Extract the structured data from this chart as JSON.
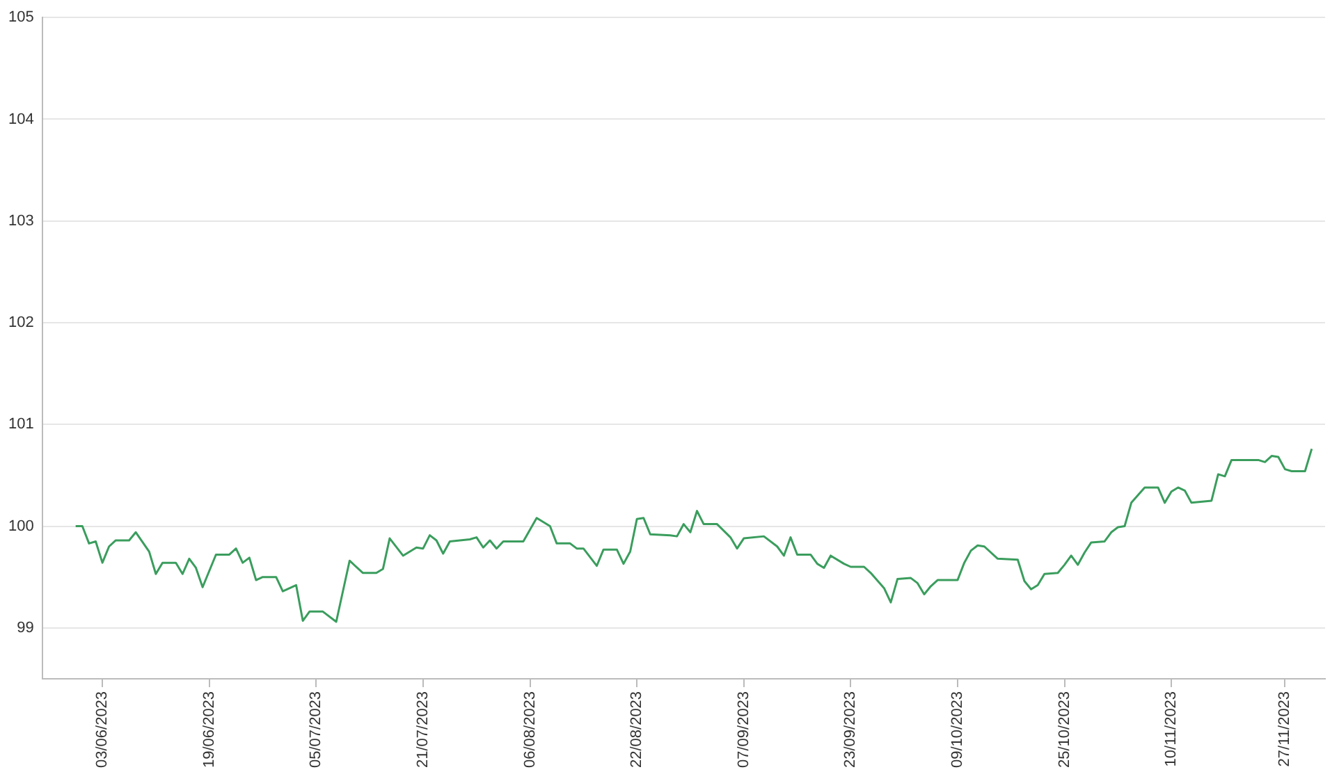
{
  "chart_data": {
    "type": "line",
    "color": "#3a9d5d",
    "grid": "y",
    "legend": false,
    "marker": "none",
    "line_style": "solid",
    "x": [
      "2023-05-30",
      "2023-05-31",
      "2023-06-01",
      "2023-06-02",
      "2023-06-03",
      "2023-06-04",
      "2023-06-05",
      "2023-06-07",
      "2023-06-08",
      "2023-06-10",
      "2023-06-11",
      "2023-06-12",
      "2023-06-14",
      "2023-06-15",
      "2023-06-16",
      "2023-06-17",
      "2023-06-18",
      "2023-06-20",
      "2023-06-22",
      "2023-06-23",
      "2023-06-24",
      "2023-06-25",
      "2023-06-26",
      "2023-06-27",
      "2023-06-29",
      "2023-06-30",
      "2023-07-02",
      "2023-07-03",
      "2023-07-04",
      "2023-07-06",
      "2023-07-08",
      "2023-07-10",
      "2023-07-12",
      "2023-07-14",
      "2023-07-15",
      "2023-07-16",
      "2023-07-18",
      "2023-07-20",
      "2023-07-21",
      "2023-07-22",
      "2023-07-23",
      "2023-07-24",
      "2023-07-25",
      "2023-07-28",
      "2023-07-29",
      "2023-07-30",
      "2023-07-31",
      "2023-08-01",
      "2023-08-02",
      "2023-08-05",
      "2023-08-07",
      "2023-08-09",
      "2023-08-10",
      "2023-08-12",
      "2023-08-13",
      "2023-08-14",
      "2023-08-16",
      "2023-08-17",
      "2023-08-19",
      "2023-08-20",
      "2023-08-21",
      "2023-08-22",
      "2023-08-23",
      "2023-08-24",
      "2023-08-27",
      "2023-08-28",
      "2023-08-29",
      "2023-08-30",
      "2023-08-31",
      "2023-09-01",
      "2023-09-03",
      "2023-09-05",
      "2023-09-06",
      "2023-09-07",
      "2023-09-10",
      "2023-09-12",
      "2023-09-13",
      "2023-09-14",
      "2023-09-15",
      "2023-09-17",
      "2023-09-18",
      "2023-09-19",
      "2023-09-20",
      "2023-09-22",
      "2023-09-23",
      "2023-09-25",
      "2023-09-26",
      "2023-09-28",
      "2023-09-29",
      "2023-09-30",
      "2023-10-02",
      "2023-10-03",
      "2023-10-04",
      "2023-10-05",
      "2023-10-06",
      "2023-10-09",
      "2023-10-10",
      "2023-10-11",
      "2023-10-12",
      "2023-10-13",
      "2023-10-15",
      "2023-10-18",
      "2023-10-19",
      "2023-10-20",
      "2023-10-21",
      "2023-10-22",
      "2023-10-24",
      "2023-10-25",
      "2023-10-26",
      "2023-10-27",
      "2023-10-28",
      "2023-10-29",
      "2023-10-31",
      "2023-11-01",
      "2023-11-02",
      "2023-11-03",
      "2023-11-04",
      "2023-11-06",
      "2023-11-08",
      "2023-11-09",
      "2023-11-10",
      "2023-11-11",
      "2023-11-12",
      "2023-11-13",
      "2023-11-16",
      "2023-11-17",
      "2023-11-18",
      "2023-11-19",
      "2023-11-23",
      "2023-11-24",
      "2023-11-25",
      "2023-11-26",
      "2023-11-27",
      "2023-11-28",
      "2023-11-30",
      "2023-12-01"
    ],
    "values": [
      100.0,
      100.0,
      99.83,
      99.85,
      99.64,
      99.8,
      99.86,
      99.86,
      99.94,
      99.75,
      99.53,
      99.64,
      99.64,
      99.53,
      99.68,
      99.59,
      99.4,
      99.72,
      99.72,
      99.78,
      99.64,
      99.69,
      99.47,
      99.5,
      99.5,
      99.36,
      99.42,
      99.07,
      99.16,
      99.16,
      99.06,
      99.66,
      99.54,
      99.54,
      99.58,
      99.88,
      99.71,
      99.79,
      99.78,
      99.91,
      99.86,
      99.73,
      99.85,
      99.87,
      99.89,
      99.79,
      99.86,
      99.78,
      99.85,
      99.85,
      100.08,
      100.0,
      99.83,
      99.83,
      99.78,
      99.78,
      99.61,
      99.77,
      99.77,
      99.63,
      99.75,
      100.07,
      100.08,
      99.92,
      99.91,
      99.9,
      100.02,
      99.94,
      100.15,
      100.02,
      100.02,
      99.89,
      99.78,
      99.88,
      99.9,
      99.8,
      99.71,
      99.89,
      99.72,
      99.72,
      99.63,
      99.59,
      99.71,
      99.63,
      99.6,
      99.6,
      99.54,
      99.39,
      99.25,
      99.48,
      99.49,
      99.44,
      99.33,
      99.41,
      99.47,
      99.47,
      99.64,
      99.76,
      99.81,
      99.8,
      99.68,
      99.67,
      99.46,
      99.38,
      99.42,
      99.53,
      99.54,
      99.62,
      99.71,
      99.62,
      99.74,
      99.84,
      99.85,
      99.94,
      99.99,
      100.0,
      100.23,
      100.38,
      100.38,
      100.23,
      100.34,
      100.38,
      100.35,
      100.23,
      100.25,
      100.51,
      100.49,
      100.65,
      100.65,
      100.63,
      100.69,
      100.68,
      100.56,
      100.54,
      100.54,
      100.76
    ],
    "xlim": [
      "2023-05-25",
      "2023-12-03"
    ],
    "xticks": [
      {
        "value": "2023-06-03",
        "label": "03/06/2023"
      },
      {
        "value": "2023-06-19",
        "label": "19/06/2023"
      },
      {
        "value": "2023-07-05",
        "label": "05/07/2023"
      },
      {
        "value": "2023-07-21",
        "label": "21/07/2023"
      },
      {
        "value": "2023-08-06",
        "label": "06/08/2023"
      },
      {
        "value": "2023-08-22",
        "label": "22/08/2023"
      },
      {
        "value": "2023-09-07",
        "label": "07/09/2023"
      },
      {
        "value": "2023-09-23",
        "label": "23/09/2023"
      },
      {
        "value": "2023-10-09",
        "label": "09/10/2023"
      },
      {
        "value": "2023-10-25",
        "label": "25/10/2023"
      },
      {
        "value": "2023-11-10",
        "label": "10/11/2023"
      },
      {
        "value": "2023-11-27",
        "label": "27/11/2023"
      }
    ],
    "ylim": [
      98.5,
      105
    ],
    "yticks": [
      99,
      100,
      101,
      102,
      103,
      104,
      105
    ]
  }
}
